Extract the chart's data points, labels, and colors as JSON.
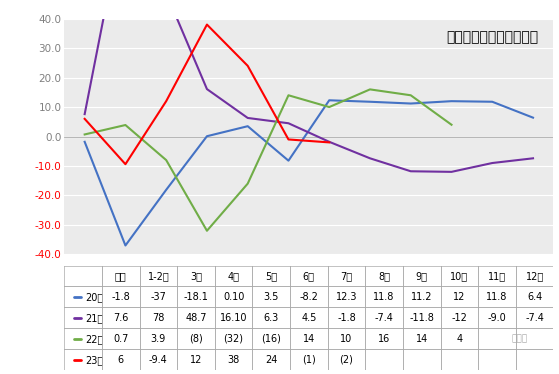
{
  "title": "汽车消费额月度增速走势",
  "x_labels": [
    "年累",
    "1-2月",
    "3月",
    "4月",
    "5月",
    "6月",
    "7月",
    "8月",
    "9月",
    "10月",
    "11月",
    "12月"
  ],
  "series": [
    {
      "label": "20年",
      "color": "#4472C4",
      "data": [
        -1.8,
        -37.0,
        -18.1,
        0.1,
        3.5,
        -8.2,
        12.3,
        11.8,
        11.2,
        12.0,
        11.8,
        6.4
      ]
    },
    {
      "label": "21年",
      "color": "#7030A0",
      "data": [
        7.6,
        78.0,
        48.7,
        16.1,
        6.3,
        4.5,
        -1.8,
        -7.4,
        -11.8,
        -12.0,
        -9.0,
        -7.4
      ]
    },
    {
      "label": "22年",
      "color": "#70AD47",
      "data": [
        0.7,
        3.9,
        -8.0,
        -32.0,
        -16.0,
        14.0,
        10.0,
        16.0,
        14.0,
        4.0,
        null,
        null
      ]
    },
    {
      "label": "23年",
      "color": "#FF0000",
      "data": [
        6.0,
        -9.4,
        12.0,
        38.0,
        24.0,
        -1.0,
        -2.0,
        null,
        null,
        null,
        null,
        null
      ]
    }
  ],
  "ylim": [
    -40.0,
    40.0
  ],
  "yticks": [
    -40.0,
    -30.0,
    -20.0,
    -10.0,
    0.0,
    10.0,
    20.0,
    30.0,
    40.0
  ],
  "table_rows": [
    {
      "label": "20年",
      "color": "#4472C4",
      "values": [
        "-1.8",
        "-37",
        "-18.1",
        "0.10",
        "3.5",
        "-8.2",
        "12.3",
        "11.8",
        "11.2",
        "12",
        "11.8",
        "6.4"
      ]
    },
    {
      "label": "21年",
      "color": "#7030A0",
      "values": [
        "7.6",
        "78",
        "48.7",
        "16.10",
        "6.3",
        "4.5",
        "-1.8",
        "-7.4",
        "-11.8",
        "-12",
        "-9.0",
        "-7.4"
      ]
    },
    {
      "label": "22年",
      "color": "#70AD47",
      "values": [
        "0.7",
        "3.9",
        "(8)",
        "(32)",
        "(16)",
        "14",
        "10",
        "16",
        "14",
        "4",
        "",
        ""
      ]
    },
    {
      "label": "23年",
      "color": "#FF0000",
      "values": [
        "6",
        "-9.4",
        "12",
        "38",
        "24",
        "(1)",
        "(2)",
        "",
        "",
        "",
        "",
        ""
      ]
    }
  ],
  "watermark": "崔东树",
  "background_color": "#FFFFFF",
  "plot_bg_color": "#EBEBEB",
  "grid_color": "#FFFFFF",
  "border_color": "#AAAAAA"
}
